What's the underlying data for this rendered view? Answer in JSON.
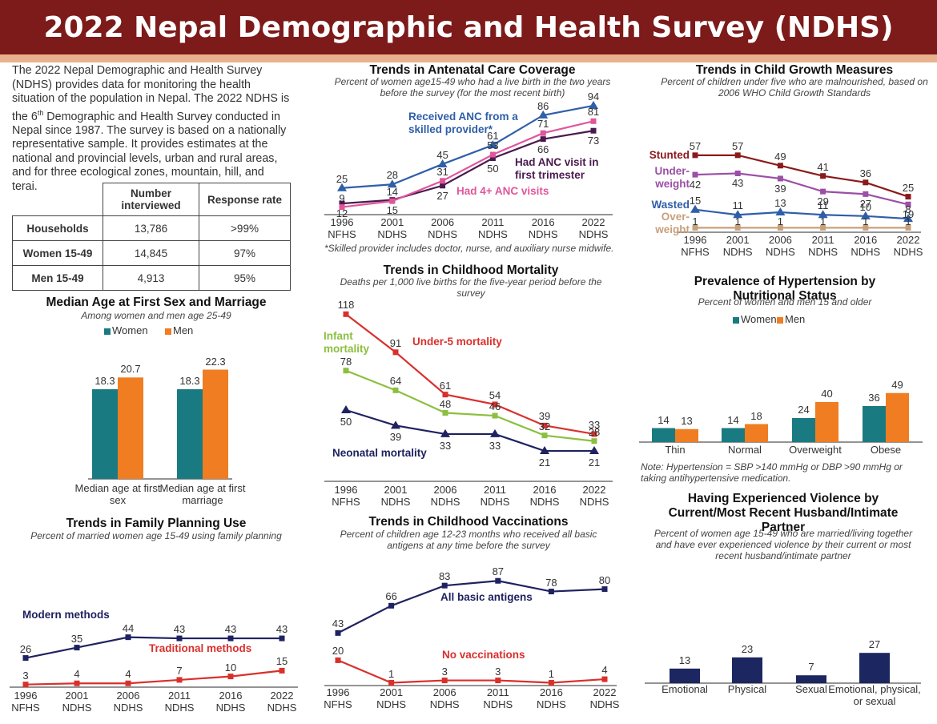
{
  "header": {
    "title": "2022 Nepal Demographic and Health Survey (NDHS)"
  },
  "intro": {
    "before": "The 2022 Nepal Demographic and Health Survey (NDHS) provides data for monitoring the health situation of the population in Nepal. The 2022 NDHS is the 6",
    "superscript": "th",
    "after": " Demographic and Health Survey conducted in Nepal since 1987. The survey is based on a nationally representative sample. It provides estimates at the national and provincial levels, urban and rural areas, and for three ecological zones, mountain, hill, and terai."
  },
  "table": {
    "columns": [
      "Number interviewed",
      "Response rate"
    ],
    "rows": [
      [
        "Households",
        "13,786",
        ">99%"
      ],
      [
        "Women 15-49",
        "14,845",
        "97%"
      ],
      [
        "Men 15-49",
        "4,913",
        "95%"
      ]
    ]
  },
  "chart_data": [
    {
      "type": "bar",
      "title": "Median Age at First Sex and Marriage",
      "subtitle": "Among women and men age 25-49",
      "categories": [
        "Median age at first sex",
        "Median age at first marriage"
      ],
      "series": [
        {
          "name": "Women",
          "color": "#1a7a82",
          "values": [
            18.3,
            18.3
          ]
        },
        {
          "name": "Men",
          "color": "#f07d22",
          "values": [
            20.7,
            22.3
          ]
        }
      ],
      "ylim": [
        0,
        25
      ]
    },
    {
      "type": "line",
      "title": "Trends in Family Planning Use",
      "subtitle": "Percent of married women age 15-49 using family planning",
      "categories": [
        "1996 NFHS",
        "2001 NDHS",
        "2006 NDHS",
        "2011 NDHS",
        "2016 NDHS",
        "2022 NDHS"
      ],
      "series": [
        {
          "name": "Modern methods",
          "color": "#1f2260",
          "values": [
            26,
            35,
            44,
            43,
            43,
            43
          ]
        },
        {
          "name": "Traditional methods",
          "color": "#d9302c",
          "values": [
            3,
            4,
            4,
            7,
            10,
            15
          ]
        }
      ],
      "ylim": [
        0,
        50
      ]
    },
    {
      "type": "line",
      "title": "Trends in Antenatal Care Coverage",
      "subtitle": "Percent of women age15-49 who had a live birth in the two years before the survey (for the most recent birth)",
      "note": "*Skilled provider includes doctor, nurse, and auxiliary nurse midwife.",
      "categories": [
        "1996 NFHS",
        "2001 NDHS",
        "2006 NDHS",
        "2011 NDHS",
        "2016 NDHS",
        "2022 NDHS"
      ],
      "series": [
        {
          "name": "Received ANC from a skilled provider*",
          "color": "#2e5fa8",
          "values": [
            25,
            28,
            45,
            61,
            86,
            94
          ]
        },
        {
          "name": "Had ANC visit in first trimester",
          "color": "#4a1a4f",
          "values": [
            12,
            15,
            27,
            50,
            66,
            73
          ]
        },
        {
          "name": "Had 4+ ANC visits",
          "color": "#e0569a",
          "values": [
            9,
            14,
            31,
            53,
            71,
            81
          ]
        }
      ],
      "ylim": [
        0,
        100
      ]
    },
    {
      "type": "line",
      "title": "Trends in Childhood Mortality",
      "subtitle": "Deaths per 1,000 live births for the five-year period before the survey",
      "categories": [
        "1996 NFHS",
        "2001 NDHS",
        "2006 NDHS",
        "2011 NDHS",
        "2016 NDHS",
        "2022 NDHS"
      ],
      "series": [
        {
          "name": "Under-5 mortality",
          "color": "#d9302c",
          "values": [
            118,
            91,
            61,
            54,
            39,
            33
          ]
        },
        {
          "name": "Infant mortality",
          "color": "#8cbf3f",
          "values": [
            78,
            64,
            48,
            46,
            32,
            28
          ]
        },
        {
          "name": "Neonatal mortality",
          "color": "#1f2260",
          "values": [
            50,
            39,
            33,
            33,
            21,
            21
          ]
        }
      ],
      "ylim": [
        0,
        125
      ]
    },
    {
      "type": "line",
      "title": "Trends in Childhood Vaccinations",
      "subtitle": "Percent of children age 12-23 months who received all basic antigens at any time before the survey",
      "categories": [
        "1996 NFHS",
        "2001 NDHS",
        "2006 NDHS",
        "2011 NDHS",
        "2016 NDHS",
        "2022 NDHS"
      ],
      "series": [
        {
          "name": "All basic antigens",
          "color": "#1f2260",
          "values": [
            43,
            66,
            83,
            87,
            78,
            80
          ]
        },
        {
          "name": "No vaccinations",
          "color": "#d9302c",
          "values": [
            20,
            1,
            3,
            3,
            1,
            4
          ]
        }
      ],
      "ylim": [
        0,
        100
      ]
    },
    {
      "type": "line",
      "title": "Trends in Child Growth Measures",
      "subtitle": "Percent of children under five who are malnourished, based on 2006 WHO Child Growth Standards",
      "categories": [
        "1996 NFHS",
        "2001 NDHS",
        "2006 NDHS",
        "2011 NDHS",
        "2016 NDHS",
        "2022 NDHS"
      ],
      "series": [
        {
          "name": "Stunted",
          "color": "#8b1a1a",
          "values": [
            57,
            57,
            49,
            41,
            36,
            25
          ]
        },
        {
          "name": "Under-weight",
          "color": "#9b4fa5",
          "values": [
            42,
            43,
            39,
            29,
            27,
            19
          ]
        },
        {
          "name": "Wasted",
          "color": "#2f5ea8",
          "values": [
            15,
            11,
            13,
            11,
            10,
            8
          ]
        },
        {
          "name": "Over-weight",
          "color": "#c9a07a",
          "values": [
            1,
            1,
            1,
            1,
            1,
            1
          ]
        }
      ],
      "ylim": [
        0,
        60
      ]
    },
    {
      "type": "bar",
      "title": "Prevalence of Hypertension by Nutritional Status",
      "subtitle": "Percent of women and men 15 and older",
      "note": "Note: Hypertension = SBP >140 mmHg or DBP >90 mmHg or taking antihypertensive medication.",
      "categories": [
        "Thin",
        "Normal",
        "Overweight",
        "Obese"
      ],
      "series": [
        {
          "name": "Women",
          "color": "#1a7a82",
          "values": [
            14,
            14,
            24,
            36
          ]
        },
        {
          "name": "Men",
          "color": "#f07d22",
          "values": [
            13,
            18,
            40,
            49
          ]
        }
      ],
      "ylim": [
        0,
        60
      ]
    },
    {
      "type": "bar",
      "title": "Having Experienced Violence by Current/Most Recent Husband/Intimate Partner",
      "subtitle": "Percent of women age 15-49 who are married/living together and have ever experienced violence by their current or most recent husband/intimate partner",
      "categories": [
        "Emotional",
        "Physical",
        "Sexual",
        "Emotional, physical, or sexual"
      ],
      "values": [
        13,
        23,
        7,
        27
      ],
      "color": "#1c2660",
      "ylim": [
        0,
        30
      ]
    }
  ]
}
